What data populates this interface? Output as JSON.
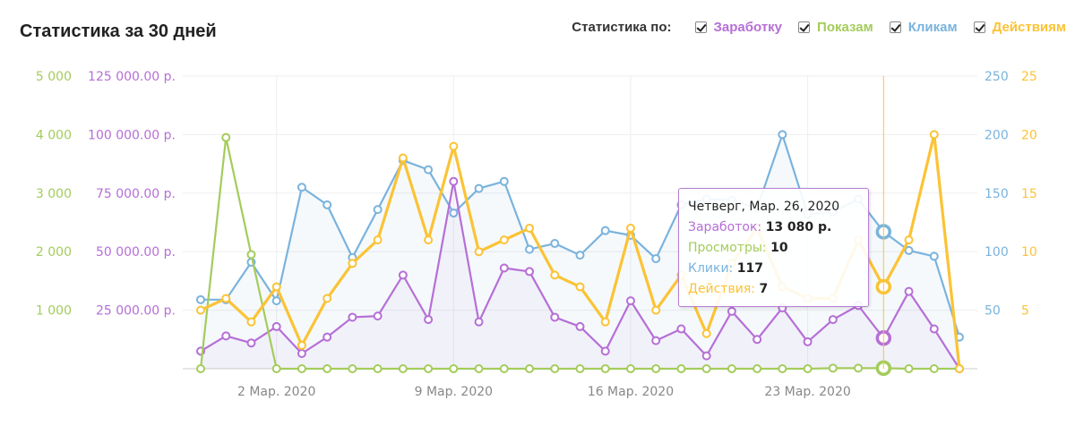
{
  "title": "Статистика за 30 дней",
  "filters": {
    "label": "Статистика по:",
    "items": [
      {
        "label": "Заработку",
        "color": "#b66fd6",
        "checked": true
      },
      {
        "label": "Показам",
        "color": "#a4cc5c",
        "checked": true
      },
      {
        "label": "Кликам",
        "color": "#7ab3dd",
        "checked": true
      },
      {
        "label": "Действиям",
        "color": "#fbc335",
        "checked": true
      }
    ]
  },
  "tooltip": {
    "date": "Четверг, Мар. 26, 2020",
    "rows": [
      {
        "label": "Заработок",
        "value": "13 080 р.",
        "color": "#b66fd6"
      },
      {
        "label": "Просмотры",
        "value": "10",
        "color": "#a4cc5c"
      },
      {
        "label": "Клики",
        "value": "117",
        "color": "#7ab3dd"
      },
      {
        "label": "Действия",
        "value": "7",
        "color": "#fbc335"
      }
    ]
  },
  "chart_data": {
    "type": "line",
    "x_tick_labels": [
      "2 Мар. 2020",
      "9 Мар. 2020",
      "16 Мар. 2020",
      "23 Мар. 2020"
    ],
    "x_tick_index": [
      3,
      10,
      17,
      24
    ],
    "highlight_index": 27,
    "axes": {
      "views": {
        "ticks": [
          "1 000",
          "2 000",
          "3 000",
          "4 000",
          "5 000"
        ],
        "ylim": [
          0,
          5000
        ],
        "color": "#a4cc5c"
      },
      "earnings": {
        "ticks": [
          "25 000.00 р.",
          "50 000.00 р.",
          "75 000.00 р.",
          "100 000.00 р.",
          "125 000.00 р."
        ],
        "ylim": [
          0,
          125000
        ],
        "color": "#b66fd6"
      },
      "clicks": {
        "ticks": [
          "50",
          "100",
          "150",
          "200",
          "250"
        ],
        "ylim": [
          0,
          250
        ],
        "color": "#7ab3dd"
      },
      "actions": {
        "ticks": [
          "5",
          "10",
          "15",
          "20",
          "25"
        ],
        "ylim": [
          0,
          25
        ],
        "color": "#fbc335"
      }
    },
    "series": [
      {
        "name": "Клики",
        "axis": "clicks",
        "color": "#7ab3dd",
        "values": [
          59,
          59,
          91,
          58,
          155,
          140,
          95,
          136,
          178,
          170,
          133,
          154,
          160,
          102,
          107,
          97,
          118,
          114,
          94,
          140,
          145,
          144,
          137,
          200,
          132,
          134,
          145,
          117,
          101,
          96,
          27
        ]
      },
      {
        "name": "Заработок",
        "axis": "earnings",
        "color": "#b66fd6",
        "values": [
          7500,
          14000,
          11000,
          18000,
          6500,
          13500,
          22000,
          22500,
          40000,
          21000,
          80000,
          20000,
          43000,
          41500,
          22000,
          18000,
          7500,
          29000,
          12000,
          17000,
          5500,
          24500,
          12500,
          26000,
          11500,
          21000,
          27000,
          13080,
          33000,
          17000,
          0
        ]
      },
      {
        "name": "Показы",
        "axis": "views",
        "color": "#a4cc5c",
        "values": [
          0,
          3950,
          1950,
          0,
          0,
          0,
          0,
          0,
          0,
          0,
          0,
          0,
          0,
          0,
          0,
          0,
          0,
          0,
          0,
          0,
          0,
          0,
          0,
          0,
          0,
          10,
          10,
          10,
          0,
          0,
          0
        ]
      },
      {
        "name": "Действия",
        "axis": "actions",
        "color": "#fbc335",
        "values": [
          5,
          6,
          4,
          7,
          2,
          6,
          9,
          11,
          18,
          11,
          19,
          10,
          11,
          12,
          8,
          7,
          4,
          12,
          5,
          8,
          3,
          9,
          12,
          7,
          6,
          6,
          11,
          7,
          11,
          20,
          0
        ]
      }
    ]
  }
}
